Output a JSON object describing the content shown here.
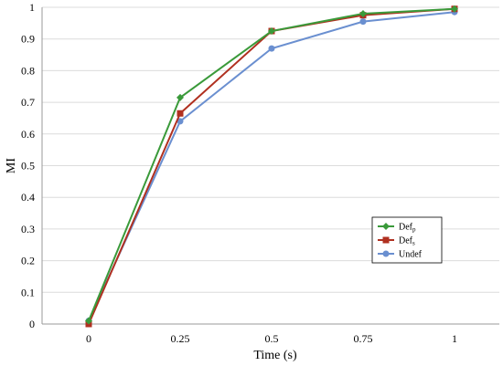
{
  "chart_data": {
    "type": "line",
    "title": "",
    "xlabel": "Time (s)",
    "ylabel": "MI",
    "x": [
      0,
      0.25,
      0.5,
      0.75,
      1
    ],
    "x_tick_labels": [
      "0",
      "0.25",
      "0.5",
      "0.75",
      "1"
    ],
    "y_tick_labels": [
      "0",
      "0.1",
      "0.2",
      "0.3",
      "0.4",
      "0.5",
      "0.6",
      "0.7",
      "0.8",
      "0.9",
      "1"
    ],
    "ylim": [
      0,
      1
    ],
    "grid": "horizontal",
    "legend_position": "right",
    "series": [
      {
        "name": "Def",
        "name_sub": "p",
        "color": "#3a9a3a",
        "marker": "diamond",
        "values": [
          0.01,
          0.715,
          0.925,
          0.98,
          0.995
        ]
      },
      {
        "name": "Def",
        "name_sub": "s",
        "color": "#b03020",
        "marker": "square",
        "values": [
          0.0,
          0.665,
          0.925,
          0.975,
          0.995
        ]
      },
      {
        "name": "Undef",
        "name_sub": "",
        "color": "#6a8fd0",
        "marker": "circle",
        "values": [
          0.01,
          0.64,
          0.87,
          0.955,
          0.985
        ]
      }
    ]
  }
}
